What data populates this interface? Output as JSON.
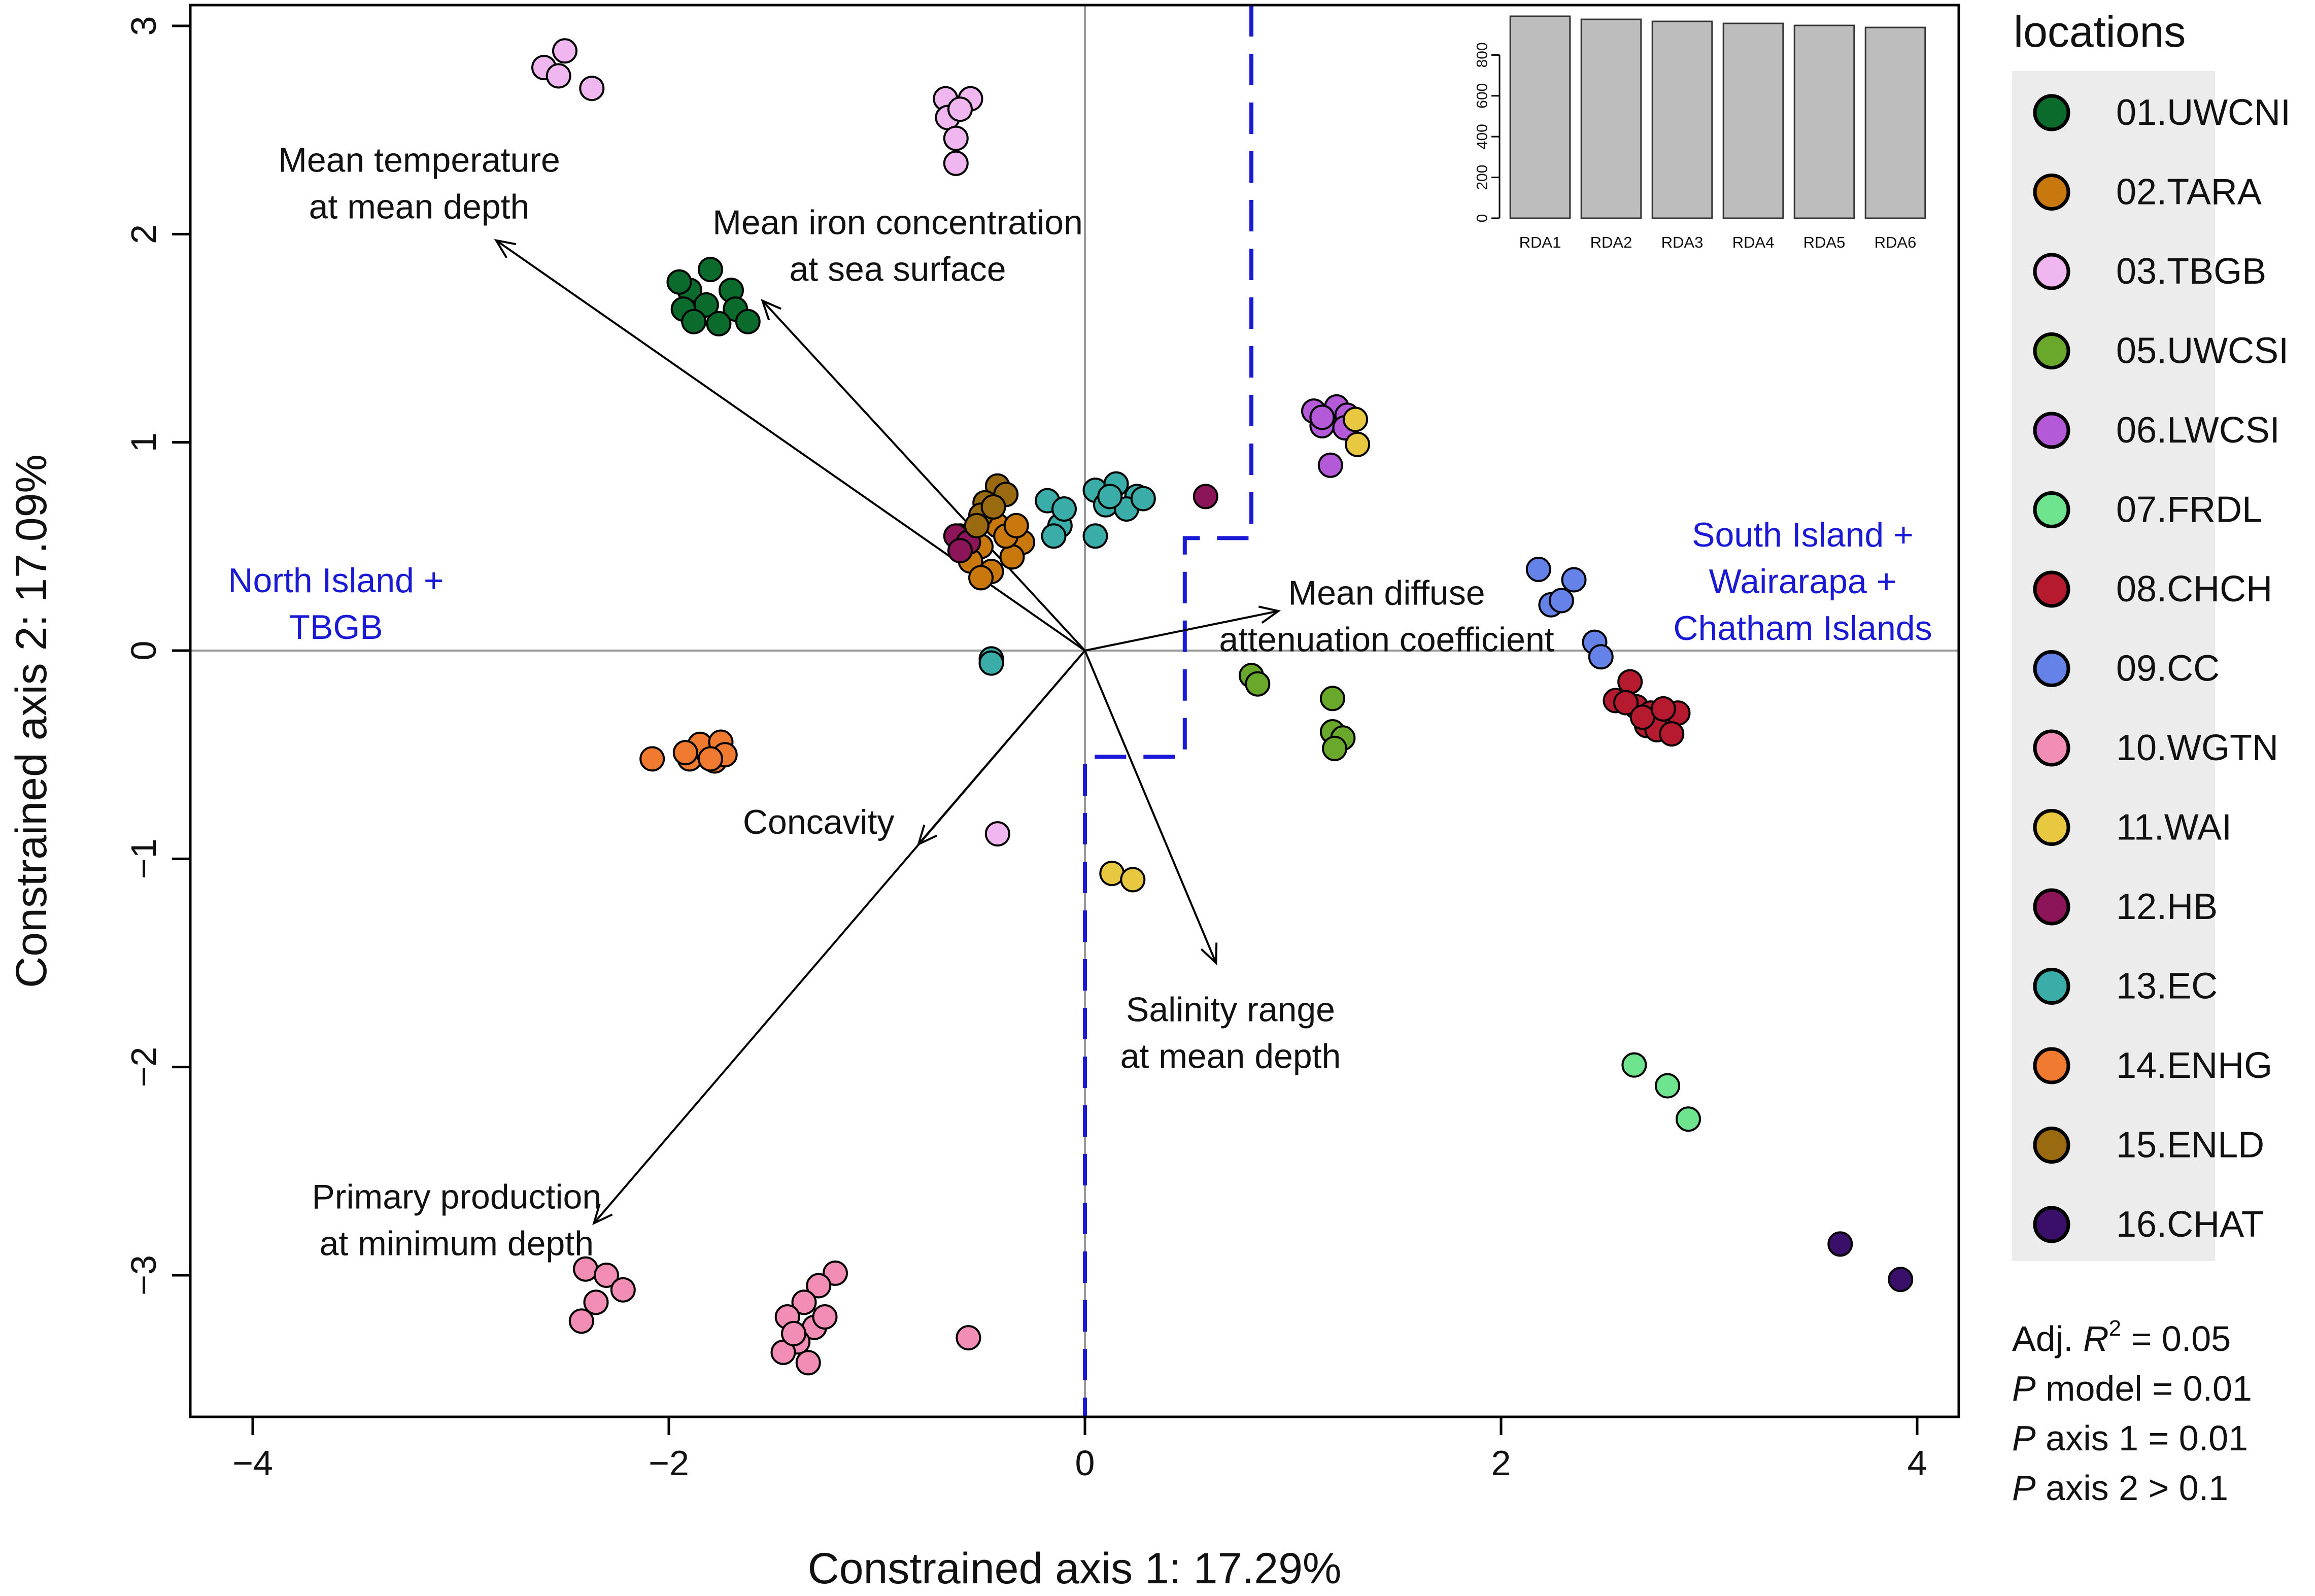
{
  "chart_data": {
    "type": "scatter",
    "subtype": "rda-triplot",
    "xlabel": "Constrained axis 1: 17.29%",
    "ylabel": "Constrained axis 2: 17.09%",
    "xlim": [
      -4.3,
      4.2
    ],
    "ylim": [
      -3.68,
      3.1
    ],
    "xticks": [
      -4,
      -2,
      0,
      2,
      4
    ],
    "yticks": [
      -3,
      -2,
      -1,
      0,
      1,
      2,
      3
    ],
    "xtick_labels": [
      "−4",
      "−2",
      "0",
      "2",
      "4"
    ],
    "ytick_labels": [
      "−3",
      "−2",
      "−1",
      "0",
      "1",
      "2",
      "3"
    ],
    "region_labels": [
      {
        "lines": [
          "North Island +",
          "TBGB"
        ],
        "x": -3.6,
        "y": 0.28,
        "color": "#1a1ad6"
      },
      {
        "lines": [
          "South Island +",
          "Wairarapa +",
          "Chatham Islands"
        ],
        "x": 3.45,
        "y": 0.5,
        "color": "#1a1ad6"
      }
    ],
    "boundary": [
      [
        0.8,
        3.1
      ],
      [
        0.8,
        0.54
      ],
      [
        0.48,
        0.54
      ],
      [
        0.48,
        -0.51
      ],
      [
        0.0,
        -0.51
      ],
      [
        0.0,
        -3.68
      ]
    ],
    "boundary_color": "#1a1ad6",
    "vectors": [
      {
        "name": "temperature",
        "lines": [
          "Mean temperature",
          "at mean depth"
        ],
        "x": -2.83,
        "y": 1.97,
        "lx": -3.2,
        "ly": 2.3
      },
      {
        "name": "iron",
        "lines": [
          "Mean iron concentration",
          "at sea surface"
        ],
        "x": -1.55,
        "y": 1.68,
        "lx": -0.9,
        "ly": 2.0
      },
      {
        "name": "diffuse-attenuation",
        "lines": [
          "Mean diffuse",
          "attenuation coefficient"
        ],
        "x": 0.93,
        "y": 0.19,
        "lx": 1.45,
        "ly": 0.22
      },
      {
        "name": "concavity",
        "lines": [
          "Concavity"
        ],
        "x": -0.8,
        "y": -0.93,
        "lx": -1.28,
        "ly": -0.88
      },
      {
        "name": "salinity",
        "lines": [
          "Salinity range",
          "at mean depth"
        ],
        "x": 0.63,
        "y": -1.5,
        "lx": 0.7,
        "ly": -1.78
      },
      {
        "name": "primary-production",
        "lines": [
          "Primary production",
          "at minimum depth"
        ],
        "x": -2.36,
        "y": -2.75,
        "lx": -3.02,
        "ly": -2.68
      }
    ],
    "series": [
      {
        "name": "01.UWCNI",
        "color": "#0b6b2c",
        "points": [
          [
            -1.9,
            1.73
          ],
          [
            -1.8,
            1.83
          ],
          [
            -1.7,
            1.73
          ],
          [
            -1.93,
            1.64
          ],
          [
            -1.82,
            1.66
          ],
          [
            -1.68,
            1.64
          ],
          [
            -1.88,
            1.58
          ],
          [
            -1.76,
            1.57
          ],
          [
            -1.62,
            1.58
          ],
          [
            -1.95,
            1.77
          ]
        ]
      },
      {
        "name": "02.TARA",
        "color": "#c8780c",
        "points": [
          [
            -0.5,
            0.5
          ],
          [
            -0.42,
            0.6
          ],
          [
            -0.3,
            0.52
          ],
          [
            -0.55,
            0.43
          ],
          [
            -0.45,
            0.38
          ],
          [
            -0.35,
            0.45
          ],
          [
            -0.5,
            0.35
          ],
          [
            -0.38,
            0.55
          ],
          [
            -0.6,
            0.55
          ],
          [
            -0.33,
            0.6
          ]
        ]
      },
      {
        "name": "03.TBGB",
        "color": "#f0b6ef",
        "points": [
          [
            -2.6,
            2.8
          ],
          [
            -2.5,
            2.88
          ],
          [
            -2.53,
            2.76
          ],
          [
            -2.37,
            2.7
          ],
          [
            -0.67,
            2.65
          ],
          [
            -0.55,
            2.65
          ],
          [
            -0.66,
            2.56
          ],
          [
            -0.6,
            2.6
          ],
          [
            -0.62,
            2.46
          ],
          [
            -0.62,
            2.34
          ],
          [
            -0.42,
            -0.88
          ]
        ]
      },
      {
        "name": "05.UWCSI",
        "color": "#6aa82c",
        "points": [
          [
            0.8,
            -0.12
          ],
          [
            0.83,
            -0.16
          ],
          [
            1.19,
            -0.23
          ],
          [
            1.19,
            -0.39
          ],
          [
            1.24,
            -0.42
          ],
          [
            1.2,
            -0.47
          ]
        ]
      },
      {
        "name": "06.LWCSI",
        "color": "#b45ad8",
        "points": [
          [
            1.1,
            1.15
          ],
          [
            1.16,
            1.12
          ],
          [
            1.21,
            1.17
          ],
          [
            1.26,
            1.13
          ],
          [
            1.14,
            1.08
          ],
          [
            1.25,
            1.07
          ],
          [
            1.18,
            0.89
          ],
          [
            1.14,
            1.12
          ]
        ]
      },
      {
        "name": "07.FRDL",
        "color": "#6fe48e",
        "points": [
          [
            2.64,
            -1.99
          ],
          [
            2.8,
            -2.09
          ],
          [
            2.9,
            -2.25
          ]
        ]
      },
      {
        "name": "08.CHCH",
        "color": "#b51a2e",
        "points": [
          [
            2.62,
            -0.15
          ],
          [
            2.55,
            -0.24
          ],
          [
            2.65,
            -0.27
          ],
          [
            2.72,
            -0.3
          ],
          [
            2.8,
            -0.33
          ],
          [
            2.7,
            -0.36
          ],
          [
            2.85,
            -0.3
          ],
          [
            2.6,
            -0.25
          ],
          [
            2.75,
            -0.38
          ],
          [
            2.82,
            -0.4
          ],
          [
            2.68,
            -0.32
          ],
          [
            2.78,
            -0.28
          ]
        ]
      },
      {
        "name": "09.CC",
        "color": "#6582e8",
        "points": [
          [
            2.18,
            0.39
          ],
          [
            2.24,
            0.22
          ],
          [
            2.29,
            0.24
          ],
          [
            2.35,
            0.34
          ],
          [
            2.45,
            0.04
          ],
          [
            2.48,
            -0.03
          ]
        ]
      },
      {
        "name": "10.WGTN",
        "color": "#f28db5",
        "points": [
          [
            -2.4,
            -2.97
          ],
          [
            -2.3,
            -3.0
          ],
          [
            -2.22,
            -3.07
          ],
          [
            -2.35,
            -3.13
          ],
          [
            -2.42,
            -3.22
          ],
          [
            -1.2,
            -2.99
          ],
          [
            -1.28,
            -3.05
          ],
          [
            -1.35,
            -3.13
          ],
          [
            -1.43,
            -3.2
          ],
          [
            -1.3,
            -3.25
          ],
          [
            -1.38,
            -3.32
          ],
          [
            -1.45,
            -3.37
          ],
          [
            -1.33,
            -3.42
          ],
          [
            -1.25,
            -3.2
          ],
          [
            -1.4,
            -3.28
          ],
          [
            -0.56,
            -3.3
          ]
        ]
      },
      {
        "name": "11.WAI",
        "color": "#e8c840",
        "points": [
          [
            1.3,
            1.11
          ],
          [
            1.31,
            0.99
          ],
          [
            0.13,
            -1.07
          ],
          [
            0.23,
            -1.1
          ]
        ]
      },
      {
        "name": "12.HB",
        "color": "#8c1458",
        "points": [
          [
            -0.62,
            0.55
          ],
          [
            -0.56,
            0.52
          ],
          [
            -0.6,
            0.48
          ],
          [
            0.58,
            0.74
          ]
        ]
      },
      {
        "name": "13.EC",
        "color": "#3aada9",
        "points": [
          [
            -0.18,
            0.72
          ],
          [
            0.05,
            0.77
          ],
          [
            0.15,
            0.8
          ],
          [
            0.25,
            0.74
          ],
          [
            0.1,
            0.7
          ],
          [
            0.2,
            0.68
          ],
          [
            0.05,
            0.55
          ],
          [
            -0.12,
            0.6
          ],
          [
            -0.15,
            0.55
          ],
          [
            0.12,
            0.74
          ],
          [
            -0.1,
            0.68
          ],
          [
            0.28,
            0.73
          ],
          [
            -0.45,
            -0.04
          ],
          [
            -0.45,
            -0.06
          ]
        ]
      },
      {
        "name": "14.ENHG",
        "color": "#f07a30",
        "points": [
          [
            -2.08,
            -0.52
          ],
          [
            -1.9,
            -0.52
          ],
          [
            -1.82,
            -0.48
          ],
          [
            -1.78,
            -0.53
          ],
          [
            -1.85,
            -0.45
          ],
          [
            -1.75,
            -0.44
          ],
          [
            -1.73,
            -0.5
          ],
          [
            -1.92,
            -0.49
          ],
          [
            -1.8,
            -0.52
          ]
        ]
      },
      {
        "name": "15.ENLD",
        "color": "#9a6a10",
        "points": [
          [
            -0.42,
            0.79
          ],
          [
            -0.48,
            0.71
          ],
          [
            -0.38,
            0.75
          ],
          [
            -0.5,
            0.65
          ],
          [
            -0.44,
            0.69
          ],
          [
            -0.52,
            0.6
          ]
        ]
      },
      {
        "name": "16.CHAT",
        "color": "#3a0f6a",
        "points": [
          [
            3.63,
            -2.85
          ],
          [
            3.92,
            -3.02
          ]
        ]
      }
    ],
    "legend": {
      "title": "locations",
      "position": "right"
    },
    "inset": {
      "type": "bar",
      "categories": [
        "RDA1",
        "RDA2",
        "RDA3",
        "RDA4",
        "RDA5",
        "RDA6"
      ],
      "values": [
        990,
        975,
        965,
        955,
        945,
        935
      ],
      "yticks": [
        0,
        200,
        400,
        600,
        800
      ],
      "ylim": [
        0,
        1000
      ],
      "bar_color": "#bdbdbd"
    },
    "stats": {
      "adj_label": "Adj. ",
      "adj_var": "R",
      "adj_sup": "2",
      "adj_value": " = 0.05",
      "lines": [
        {
          "italic": "P",
          "rest": " model = 0.01"
        },
        {
          "italic": "P",
          "rest": " axis 1 = 0.01"
        },
        {
          "italic": "P",
          "rest": " axis 2 > 0.1"
        }
      ]
    }
  }
}
